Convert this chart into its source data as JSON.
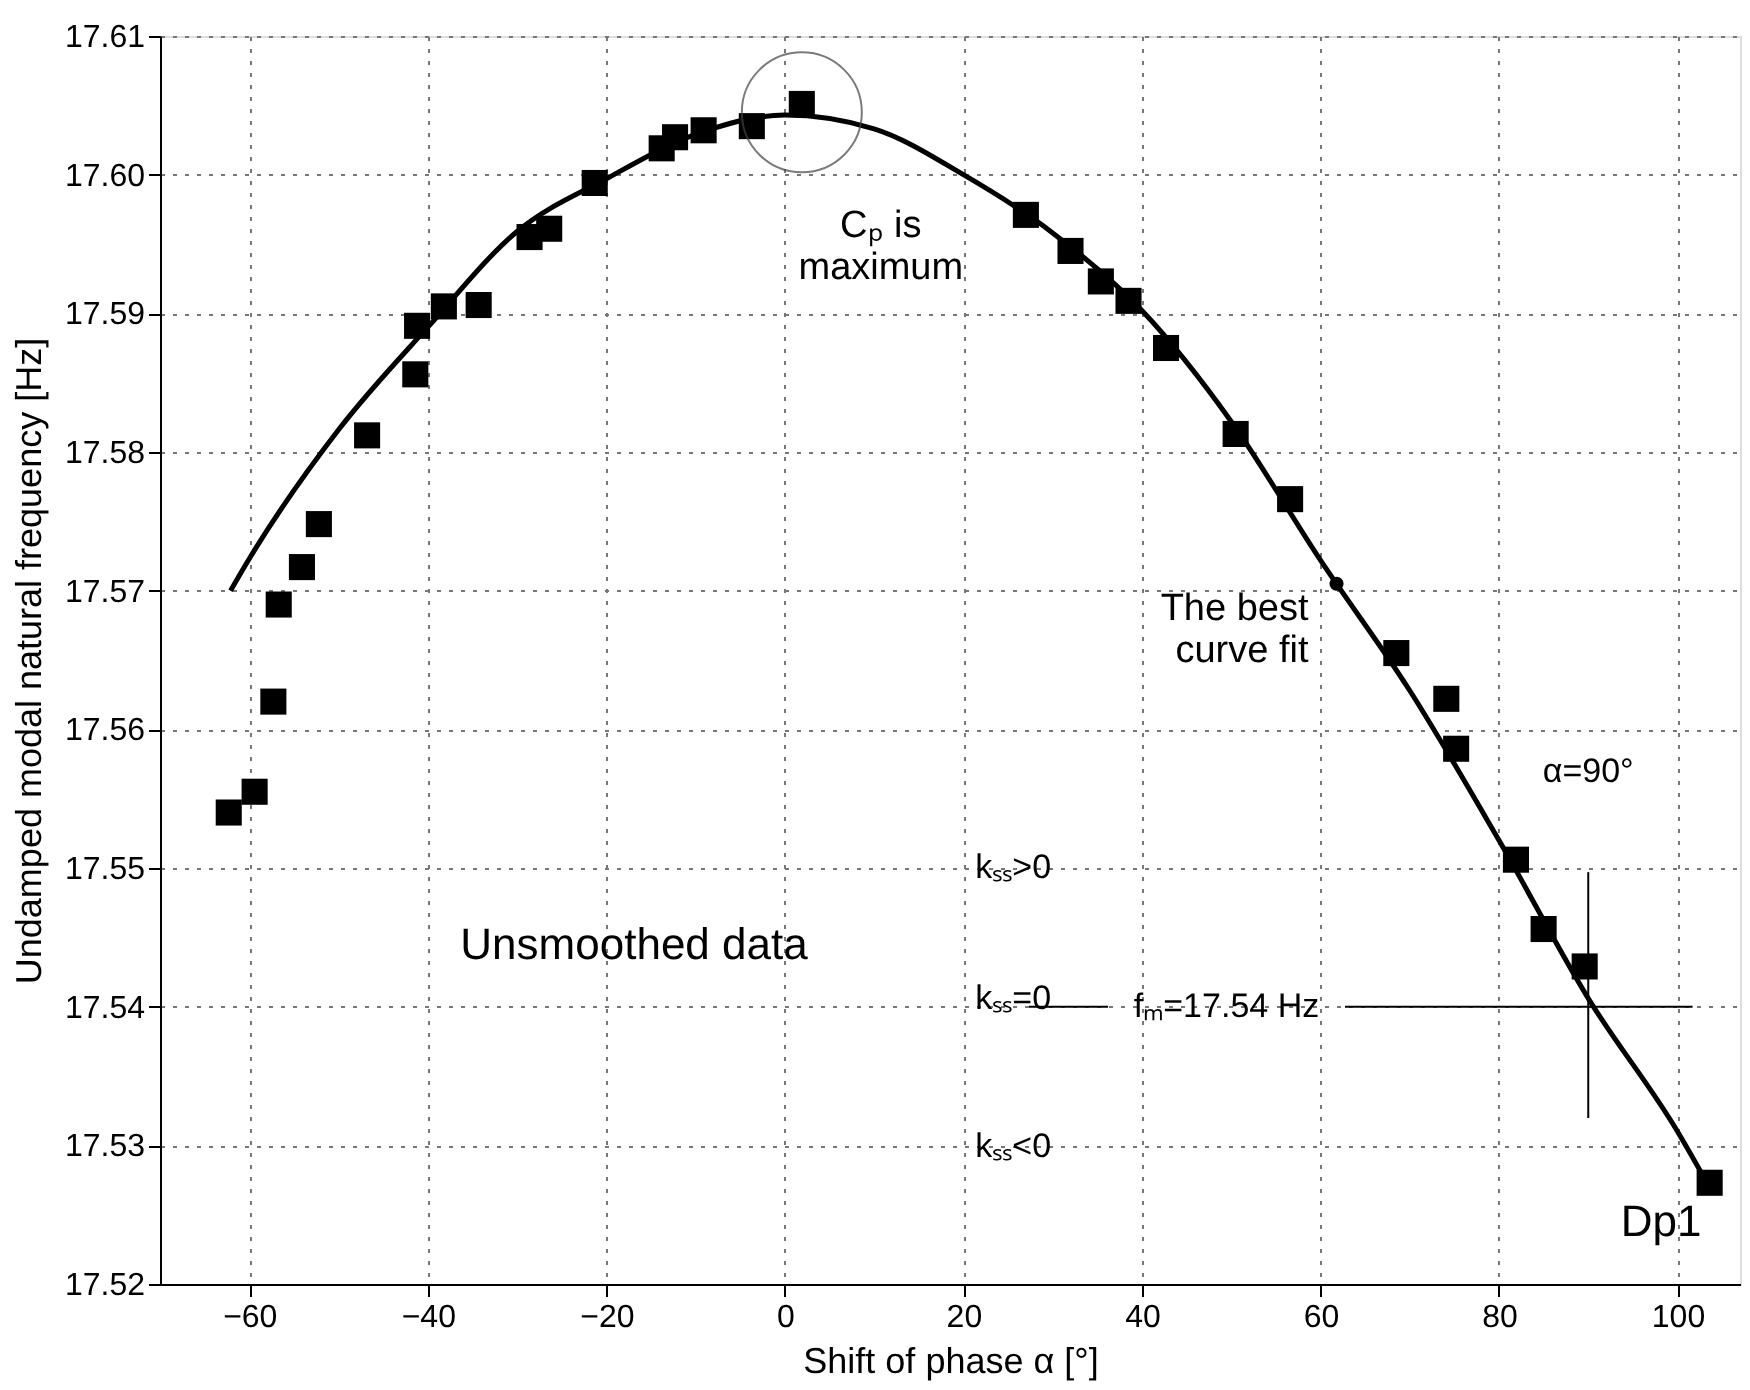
{
  "chart_data": {
    "type": "scatter",
    "xlabel": "Shift of phase α [°]",
    "ylabel": "Undamped modal natural frequency  [Hz]",
    "xlim": [
      -70,
      107
    ],
    "xticks": [
      -60,
      -40,
      -20,
      0,
      20,
      40,
      60,
      80,
      100
    ],
    "ylim": [
      17.52,
      17.61
    ],
    "yticks": [
      {
        "value": 17.52,
        "label": "17.52"
      },
      {
        "value": 17.53,
        "label": "17.53"
      },
      {
        "value": 17.54,
        "label": "17.54"
      },
      {
        "value": 17.55,
        "label": "17.55"
      },
      {
        "value": 17.56,
        "label": "17.56"
      },
      {
        "value": 17.57,
        "label": "17.57"
      },
      {
        "value": 17.58,
        "label": "17.58"
      },
      {
        "value": 17.59,
        "label": "17.59"
      },
      {
        "value": 17.6,
        "label": "17.60"
      },
      {
        "value": 17.61,
        "label": "17.61"
      }
    ],
    "grid": true,
    "series": [
      {
        "marker": "square",
        "color": "#000000",
        "x": [
          -62.3,
          -59.4,
          -57.3,
          -56.7,
          -54.1,
          -52.2,
          -46.8,
          -41.4,
          -41.2,
          -38.2,
          -34.3,
          -28.6,
          -26.4,
          -21.3,
          -13.8,
          -12.3,
          -9.1,
          -3.7,
          1.9,
          27.0,
          32.0,
          35.4,
          38.5,
          42.7,
          50.5,
          56.6,
          68.5,
          74.1,
          75.2,
          81.9,
          85.0,
          89.6,
          103.6
        ],
        "values": [
          17.554,
          17.5555,
          17.562,
          17.569,
          17.5717,
          17.5748,
          17.5812,
          17.5856,
          17.5891,
          17.5905,
          17.5906,
          17.5955,
          17.5961,
          17.5994,
          17.6019,
          17.6027,
          17.6032,
          17.6035,
          17.6051,
          17.5971,
          17.5945,
          17.5923,
          17.5909,
          17.5875,
          17.5813,
          17.5766,
          17.5655,
          17.5622,
          17.5586,
          17.5506,
          17.5456,
          17.5429,
          17.5273
        ]
      },
      {
        "type": "line",
        "marker": "none",
        "line_style": "solid",
        "color": "#000000",
        "x": [
          -62.1,
          -60,
          -50,
          -40,
          -30,
          -20,
          -10,
          0,
          10,
          20,
          30,
          40,
          50,
          60,
          70,
          80,
          90,
          100,
          104
        ],
        "values": [
          17.57,
          17.5723,
          17.5816,
          17.589,
          17.5959,
          17.5997,
          17.6029,
          17.6043,
          17.6033,
          17.6,
          17.5958,
          17.5902,
          17.5822,
          17.5722,
          17.5628,
          17.552,
          17.5406,
          17.531,
          17.5265
        ]
      }
    ],
    "ref_lines": [
      {
        "axis": "x",
        "value": 90,
        "label": "α=90°"
      },
      {
        "axis": "y",
        "value": 17.54,
        "label": "fₘ=17.54 Hz"
      }
    ],
    "annotations": [
      {
        "text": "Cₚ is\nmaximum",
        "x": 1.9,
        "y": 17.6045
      },
      {
        "text": "The best\ncurve fit",
        "x": 61.8,
        "y": 17.5705
      },
      "Unsmoothed data",
      "kₛₛ>0",
      "kₛₛ=0",
      "kₛₛ<0",
      "Dp1"
    ]
  }
}
